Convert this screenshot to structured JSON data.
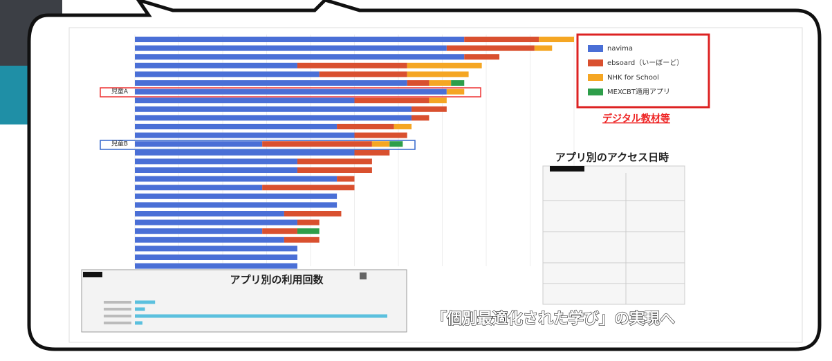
{
  "chart_data": [
    {
      "type": "stacked-barh",
      "categories": [
        null,
        null,
        null,
        null,
        null,
        null,
        "児童A",
        null,
        null,
        null,
        null,
        null,
        "児童B",
        null,
        null,
        null,
        null,
        null,
        null,
        null,
        null,
        null,
        null,
        null,
        null,
        null,
        null
      ],
      "series": [
        {
          "name": "navima",
          "color": "#4a6fd6",
          "values": [
            75,
            71,
            75,
            37,
            42,
            62,
            71,
            50,
            63,
            63,
            46,
            50,
            29,
            50,
            37,
            37,
            46,
            29,
            46,
            46,
            34,
            37,
            29,
            34,
            37,
            37,
            37
          ]
        },
        {
          "name": "ebsoard（いーぼーど）",
          "color": "#d9502f",
          "values": [
            17,
            20,
            8,
            25,
            20,
            5,
            0,
            17,
            8,
            4,
            13,
            12,
            25,
            8,
            17,
            17,
            4,
            21,
            0,
            0,
            13,
            5,
            8,
            8,
            0,
            0,
            0
          ]
        },
        {
          "name": "NHK for School",
          "color": "#f5a623",
          "values": [
            8,
            4,
            0,
            17,
            14,
            5,
            4,
            4,
            0,
            0,
            4,
            0,
            4,
            0,
            0,
            0,
            0,
            0,
            0,
            0,
            0,
            0,
            0,
            0,
            0,
            0,
            0
          ]
        },
        {
          "name": "MEXCBT適用アプリ",
          "color": "#2e9e4a",
          "values": [
            0,
            0,
            0,
            0,
            0,
            3,
            0,
            0,
            0,
            0,
            0,
            0,
            3,
            0,
            0,
            0,
            0,
            0,
            0,
            0,
            0,
            0,
            5,
            0,
            0,
            0,
            0
          ]
        }
      ],
      "xlim": [
        0,
        100
      ],
      "grid": true,
      "legend": "upper right",
      "annotations": [
        "デジタル教材等",
        "アプリ別のアクセス日時",
        "「個別最適化された学び」の実現へ"
      ]
    },
    {
      "type": "barh",
      "title": "アプリ別の利用回数",
      "categories": [
        null,
        null,
        null,
        null
      ],
      "values": [
        8,
        4,
        100,
        3
      ],
      "color": "#5bc0de",
      "xlim": [
        0,
        100
      ]
    }
  ]
}
